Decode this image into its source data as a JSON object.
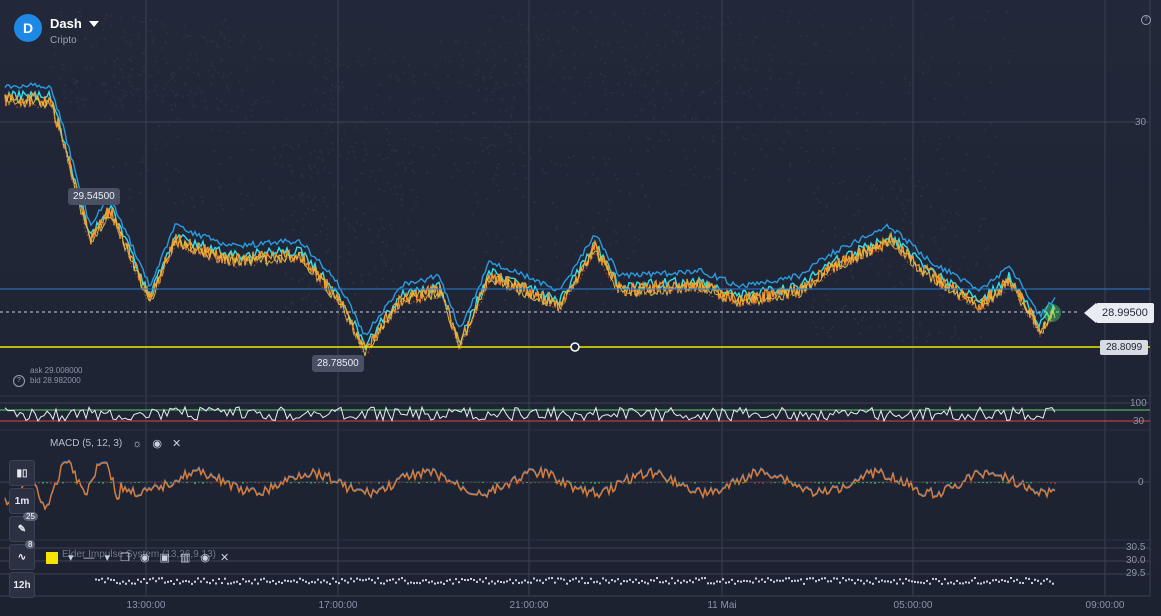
{
  "asset": {
    "name": "Dash",
    "category": "Cripto",
    "logo_glyph": "D",
    "logo_color": "#1e88e5"
  },
  "price": {
    "current": "28.99500",
    "level": "28.8099",
    "high_marker": "29.54500",
    "low_marker": "28.78500"
  },
  "quote": {
    "ask": "ask 29.008000",
    "bid": "bid 28.982000"
  },
  "y_axis": {
    "main": "30",
    "osc_top": "100",
    "osc_bottom": "30",
    "macd_zero": "0",
    "elder": [
      "30.5",
      "30.0",
      "29.5"
    ]
  },
  "x_axis": [
    "13:00:00",
    "17:00:00",
    "21:00:00",
    "11 Mai",
    "05:00:00",
    "09:00:00"
  ],
  "macd": {
    "label": "MACD (5, 12, 3)"
  },
  "elder": {
    "label": "Elder Impulse System (13,26,9,13)"
  },
  "left_toolbar": {
    "timeframe": "1m",
    "draw_badge": "25",
    "indicator_badge": "8",
    "period": "12h"
  },
  "colors": {
    "accent": "#1e88e5",
    "level_line": "#f2e600",
    "ema_blue": "#2a9be0",
    "ema_cyan": "#2fe0f0",
    "price_orange": "#f39a2b",
    "osc_green": "#5cd46b",
    "osc_red": "#e2453c",
    "macd_line": "#e07a2e"
  }
}
